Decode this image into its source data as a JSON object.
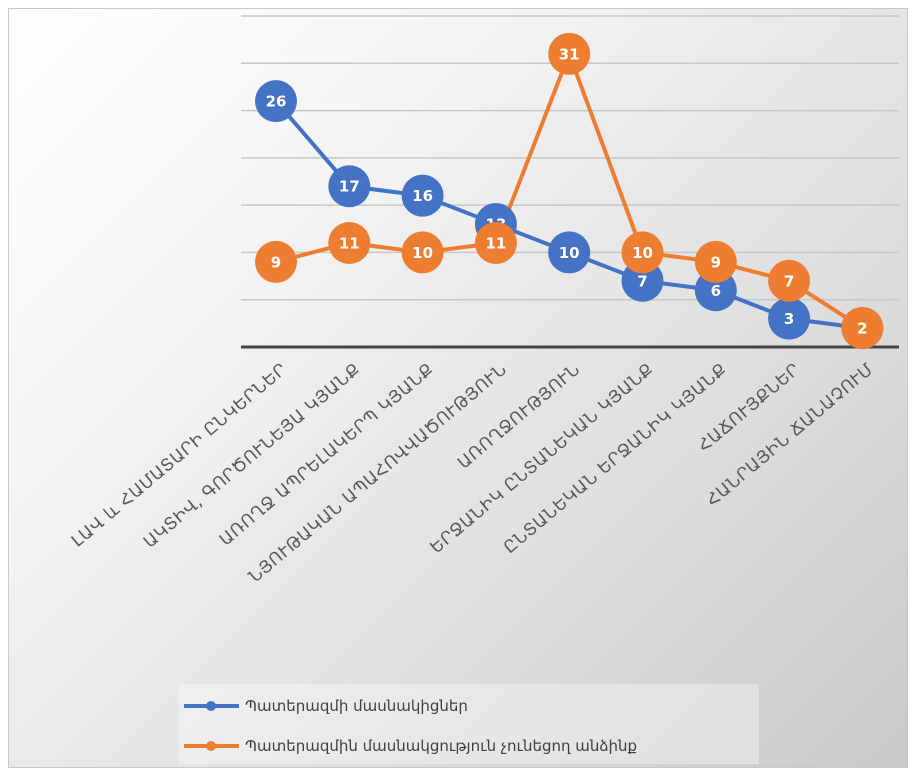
{
  "chart_data": {
    "type": "line",
    "title": "",
    "xlabel": "",
    "ylabel": "",
    "ylim": [
      0,
      35
    ],
    "gridlines": [
      5,
      10,
      15,
      20,
      25,
      30,
      35
    ],
    "grid": true,
    "legend_position": "bottom",
    "categories": [
      "ԼԱՎ և ՀԱՄԱՏԱՐԻ ԸՆԿԵՐՆԵՐ",
      "ԱԿՏԻՎ, ԳՈՐԾՈՒՆԵՅԱ ԿՅԱՆՔ",
      "ԱՌՈՂՋ ԱՊՐԵԼԱԿԵՐՊ ԿՅԱՆՔ",
      "ՆՅՈՒԹԱԿԱՆ ԱՊԱՀՈՎՎԱԾՈՒԹՅՈՒՆ",
      "ԱՌՈՂՋՈՒԹՅՈՒՆ",
      "ԵՐՋԱՆԻԿ ԸՆՏԱՆԵԿԱՆ ԿՅԱՆՔ",
      "ԸՆՏԱՆԵԿԱՆ ԵՐՋԱՆԻԿ ԿՅԱՆՔ",
      "ՀԱՃՈՒՅՔՆԵՐ",
      "ՀԱՆՐԱՅԻՆ ՃԱՆԱՉՈՒՄ"
    ],
    "series": [
      {
        "name": "Պատերազմի մասնակիցներ",
        "color": "#4472c4",
        "values": [
          26,
          17,
          16,
          13,
          10,
          7,
          6,
          3,
          2
        ]
      },
      {
        "name": "Պատերազմին մասնակցություն չունեցող անձինք",
        "color": "#ed7d31",
        "values": [
          9,
          11,
          10,
          11,
          31,
          10,
          9,
          7,
          2
        ]
      }
    ]
  }
}
